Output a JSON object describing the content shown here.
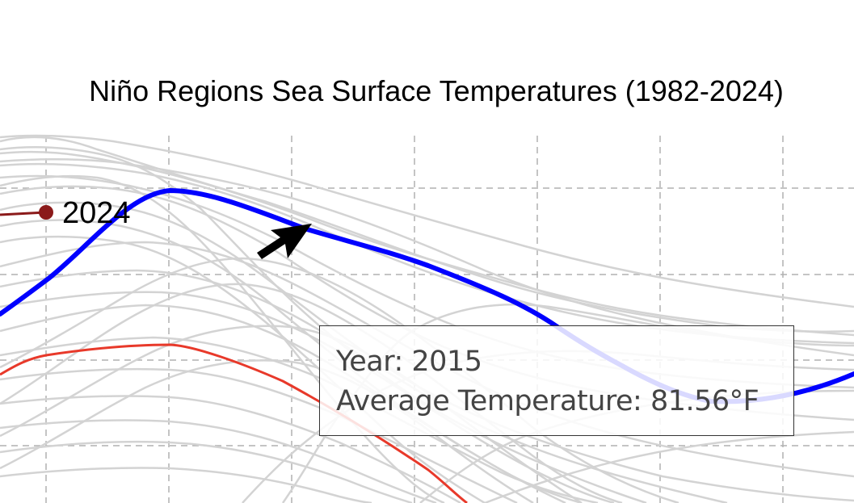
{
  "chart_data": {
    "type": "line",
    "title": "Niño Regions Sea Surface Temperatures (1982-2024)",
    "highlighted_series": [
      {
        "name": "2015",
        "color": "#0000ff"
      },
      {
        "name": "2024",
        "color": "#8b1a1a",
        "end_label": "2024"
      },
      {
        "color": "#e8392a"
      }
    ],
    "background_series_color": "#d3d3d3",
    "grid": true,
    "legend": "none",
    "tooltip": {
      "year_label": "Year: 2015",
      "temp_label": "Average Temperature: 81.56°F"
    }
  }
}
